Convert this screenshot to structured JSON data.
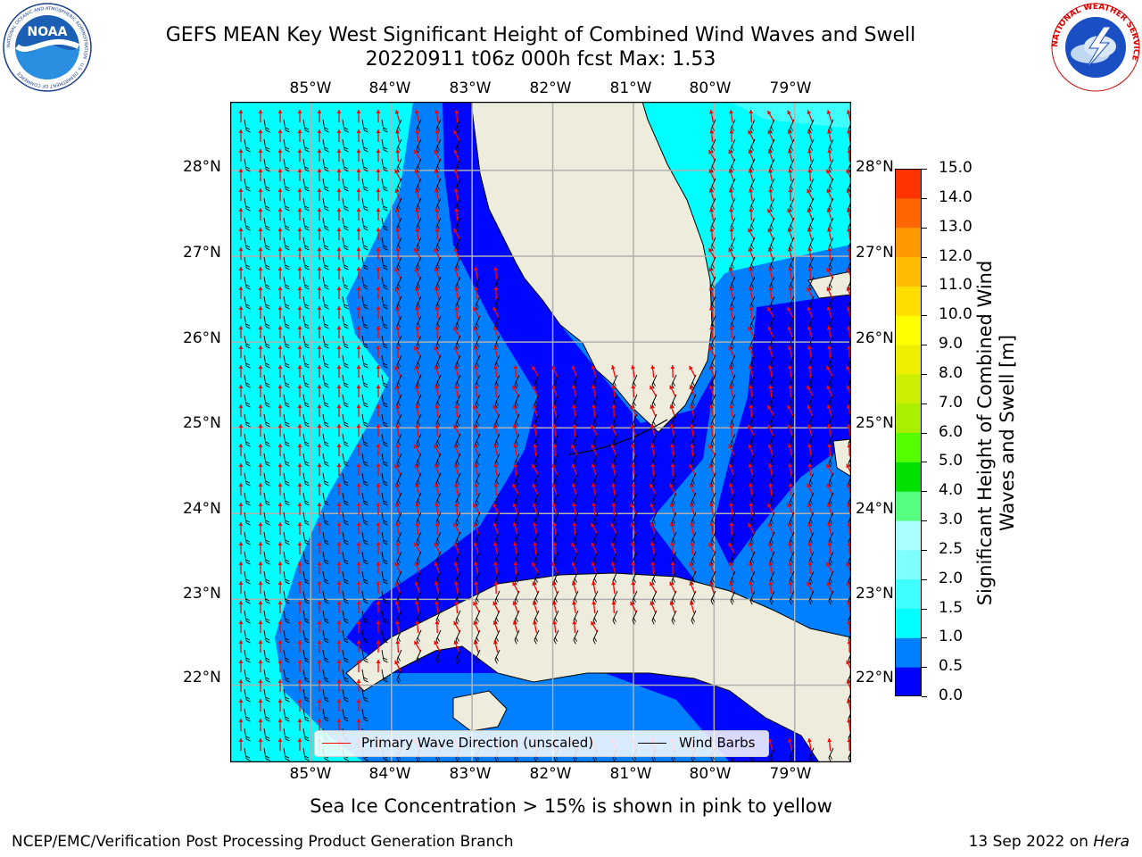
{
  "header": {
    "title_line1": "GEFS MEAN Key West Significant Height of Combined Wind Waves and Swell",
    "title_line2": "20220911 t06z 000h fcst   Max: 1.53"
  },
  "logos": {
    "noaa": "NOAA",
    "noaa_ring": "NATIONAL OCEANIC AND ATMOSPHERIC ADMINISTRATION · U.S. DEPARTMENT OF COMMERCE",
    "nws_ring": "NATIONAL WEATHER SERVICE"
  },
  "map": {
    "lon_labels": [
      "85°W",
      "84°W",
      "83°W",
      "82°W",
      "81°W",
      "80°W",
      "79°W"
    ],
    "lat_labels": [
      "28°N",
      "27°N",
      "26°N",
      "25°N",
      "24°N",
      "23°N",
      "22°N"
    ],
    "colors": {
      "land": "#eeecdc",
      "grid": "#b0b0b0",
      "coast": "#000000",
      "wave_arrow": "#ff0000",
      "wind_barb": "#000000"
    }
  },
  "chart_data": {
    "type": "heatmap",
    "variable": "Significant Height of Combined Wind Waves and Swell",
    "units": "m",
    "model": "GEFS MEAN",
    "region": "Key West",
    "cycle": "20220911 t06z",
    "forecast_hour": "000h",
    "max": 1.53,
    "lon_range": [
      -86.0,
      -78.3
    ],
    "lat_range": [
      21.1,
      28.8
    ],
    "colorbar": {
      "label": "Significant Height of Combined Wind Waves and Swell [m]",
      "bounds": [
        0.0,
        0.5,
        1.0,
        1.5,
        2.0,
        2.5,
        3.0,
        4.0,
        5.0,
        6.0,
        7.0,
        8.0,
        9.0,
        10.0,
        11.0,
        12.0,
        13.0,
        14.0,
        15.0
      ],
      "tick_labels": [
        "0.0",
        "0.5",
        "1.0",
        "1.5",
        "2.0",
        "2.5",
        "3.0",
        "4.0",
        "5.0",
        "6.0",
        "7.0",
        "8.0",
        "9.0",
        "10.0",
        "11.0",
        "12.0",
        "13.0",
        "14.0",
        "15.0"
      ],
      "colors": [
        "#0000ff",
        "#0080ff",
        "#00ffff",
        "#40ffff",
        "#80ffff",
        "#aaffff",
        "#55ff80",
        "#00e000",
        "#55ff00",
        "#aaee00",
        "#ccee00",
        "#eeee00",
        "#ffff00",
        "#ffdd00",
        "#ffbb00",
        "#ff9900",
        "#ff6600",
        "#ff3300"
      ]
    },
    "legend": [
      {
        "label": "Primary Wave Direction (unscaled)",
        "color": "#ff0000"
      },
      {
        "label": "Wind Barbs",
        "color": "#000000"
      }
    ]
  },
  "footer": {
    "ice_note": "Sea Ice Concentration > 15% is shown in pink to yellow",
    "credit": "NCEP/EMC/Verification Post Processing Product Generation Branch",
    "date_prefix": "13 Sep 2022 on",
    "machine": "Hera"
  }
}
